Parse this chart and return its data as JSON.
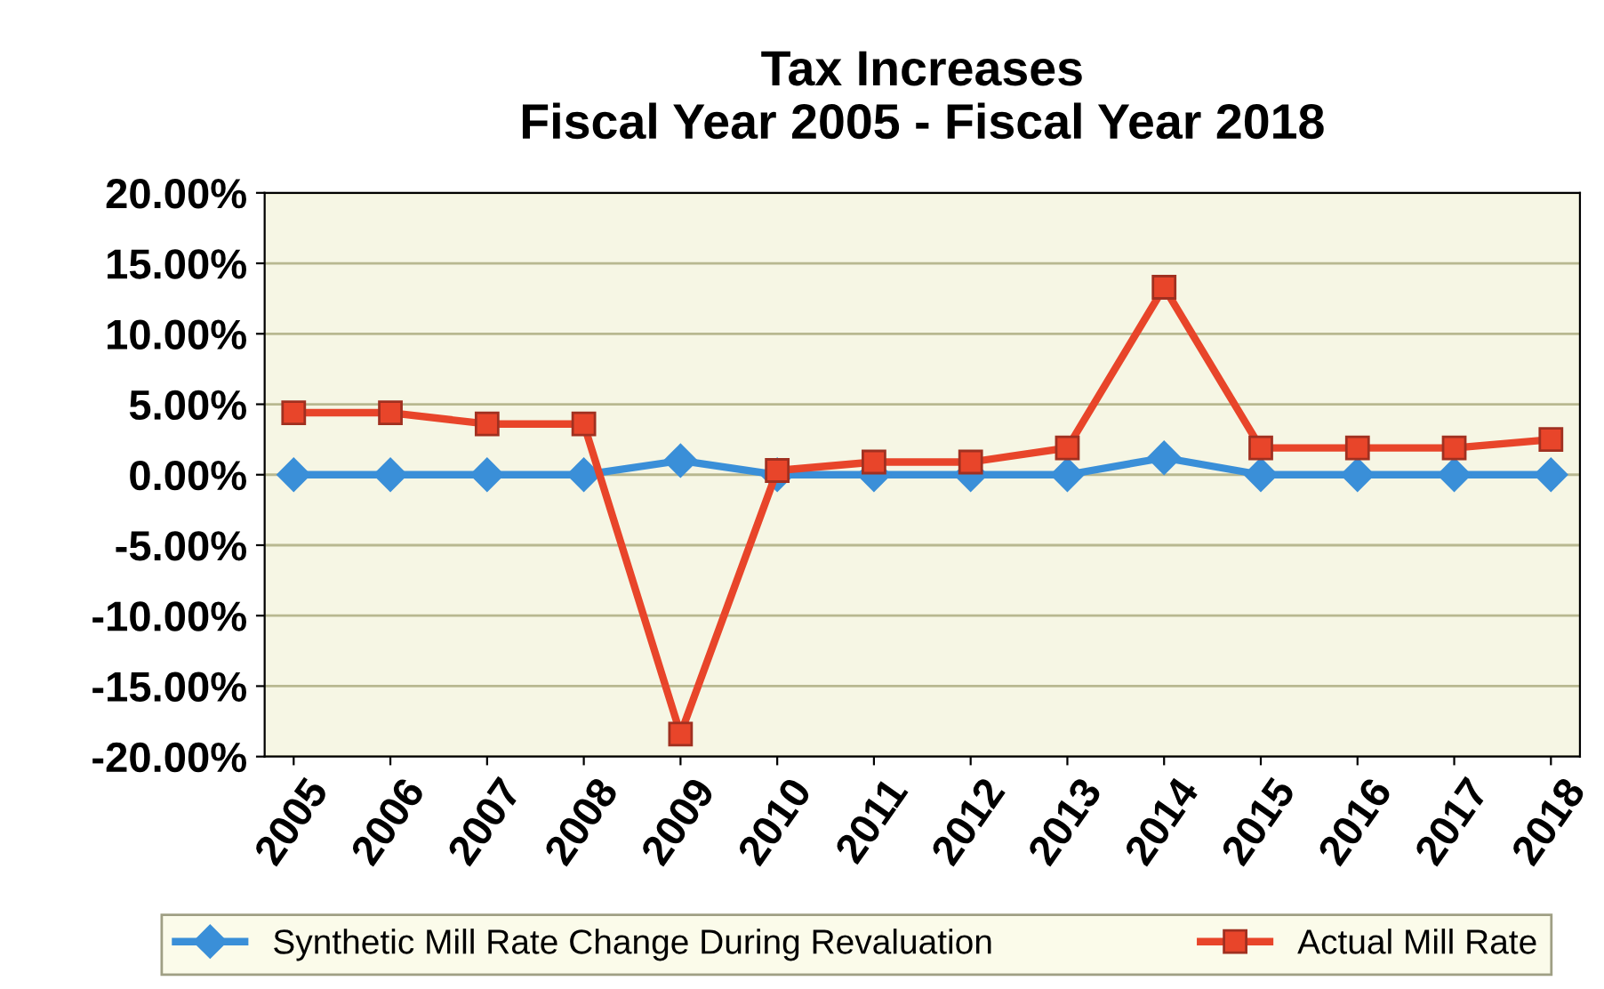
{
  "chart_data": {
    "type": "line",
    "title": "Tax Increases\nFiscal Year 2005 - Fiscal Year 2018",
    "categories": [
      "2005",
      "2006",
      "2007",
      "2008",
      "2009",
      "2010",
      "2011",
      "2012",
      "2013",
      "2014",
      "2015",
      "2016",
      "2017",
      "2018"
    ],
    "series": [
      {
        "name": "Synthetic Mill Rate Change During Revaluation",
        "color": "#3a8fd8",
        "marker": "diamond",
        "values": [
          0,
          0,
          0,
          0,
          1.0,
          0,
          0,
          0,
          0,
          1.2,
          0,
          0,
          0,
          0
        ]
      },
      {
        "name": "Actual Mill Rate",
        "color": "#e8452a",
        "marker": "square",
        "values": [
          4.4,
          4.4,
          3.6,
          3.6,
          -18.4,
          0.3,
          0.9,
          0.9,
          1.9,
          13.3,
          1.9,
          1.9,
          1.9,
          2.5
        ]
      }
    ],
    "ylim": [
      -20,
      20
    ],
    "yticks": [
      {
        "value": -20,
        "label": "-20.00%"
      },
      {
        "value": -15,
        "label": "-15.00%"
      },
      {
        "value": -10,
        "label": "-10.00%"
      },
      {
        "value": -5,
        "label": "-5.00%"
      },
      {
        "value": 0,
        "label": "0.00%"
      },
      {
        "value": 5,
        "label": "5.00%"
      },
      {
        "value": 10,
        "label": "10.00%"
      },
      {
        "value": 15,
        "label": "15.00%"
      },
      {
        "value": 20,
        "label": "20.00%"
      }
    ],
    "grid": "y",
    "legend": "bottom",
    "line_style": "solid"
  }
}
